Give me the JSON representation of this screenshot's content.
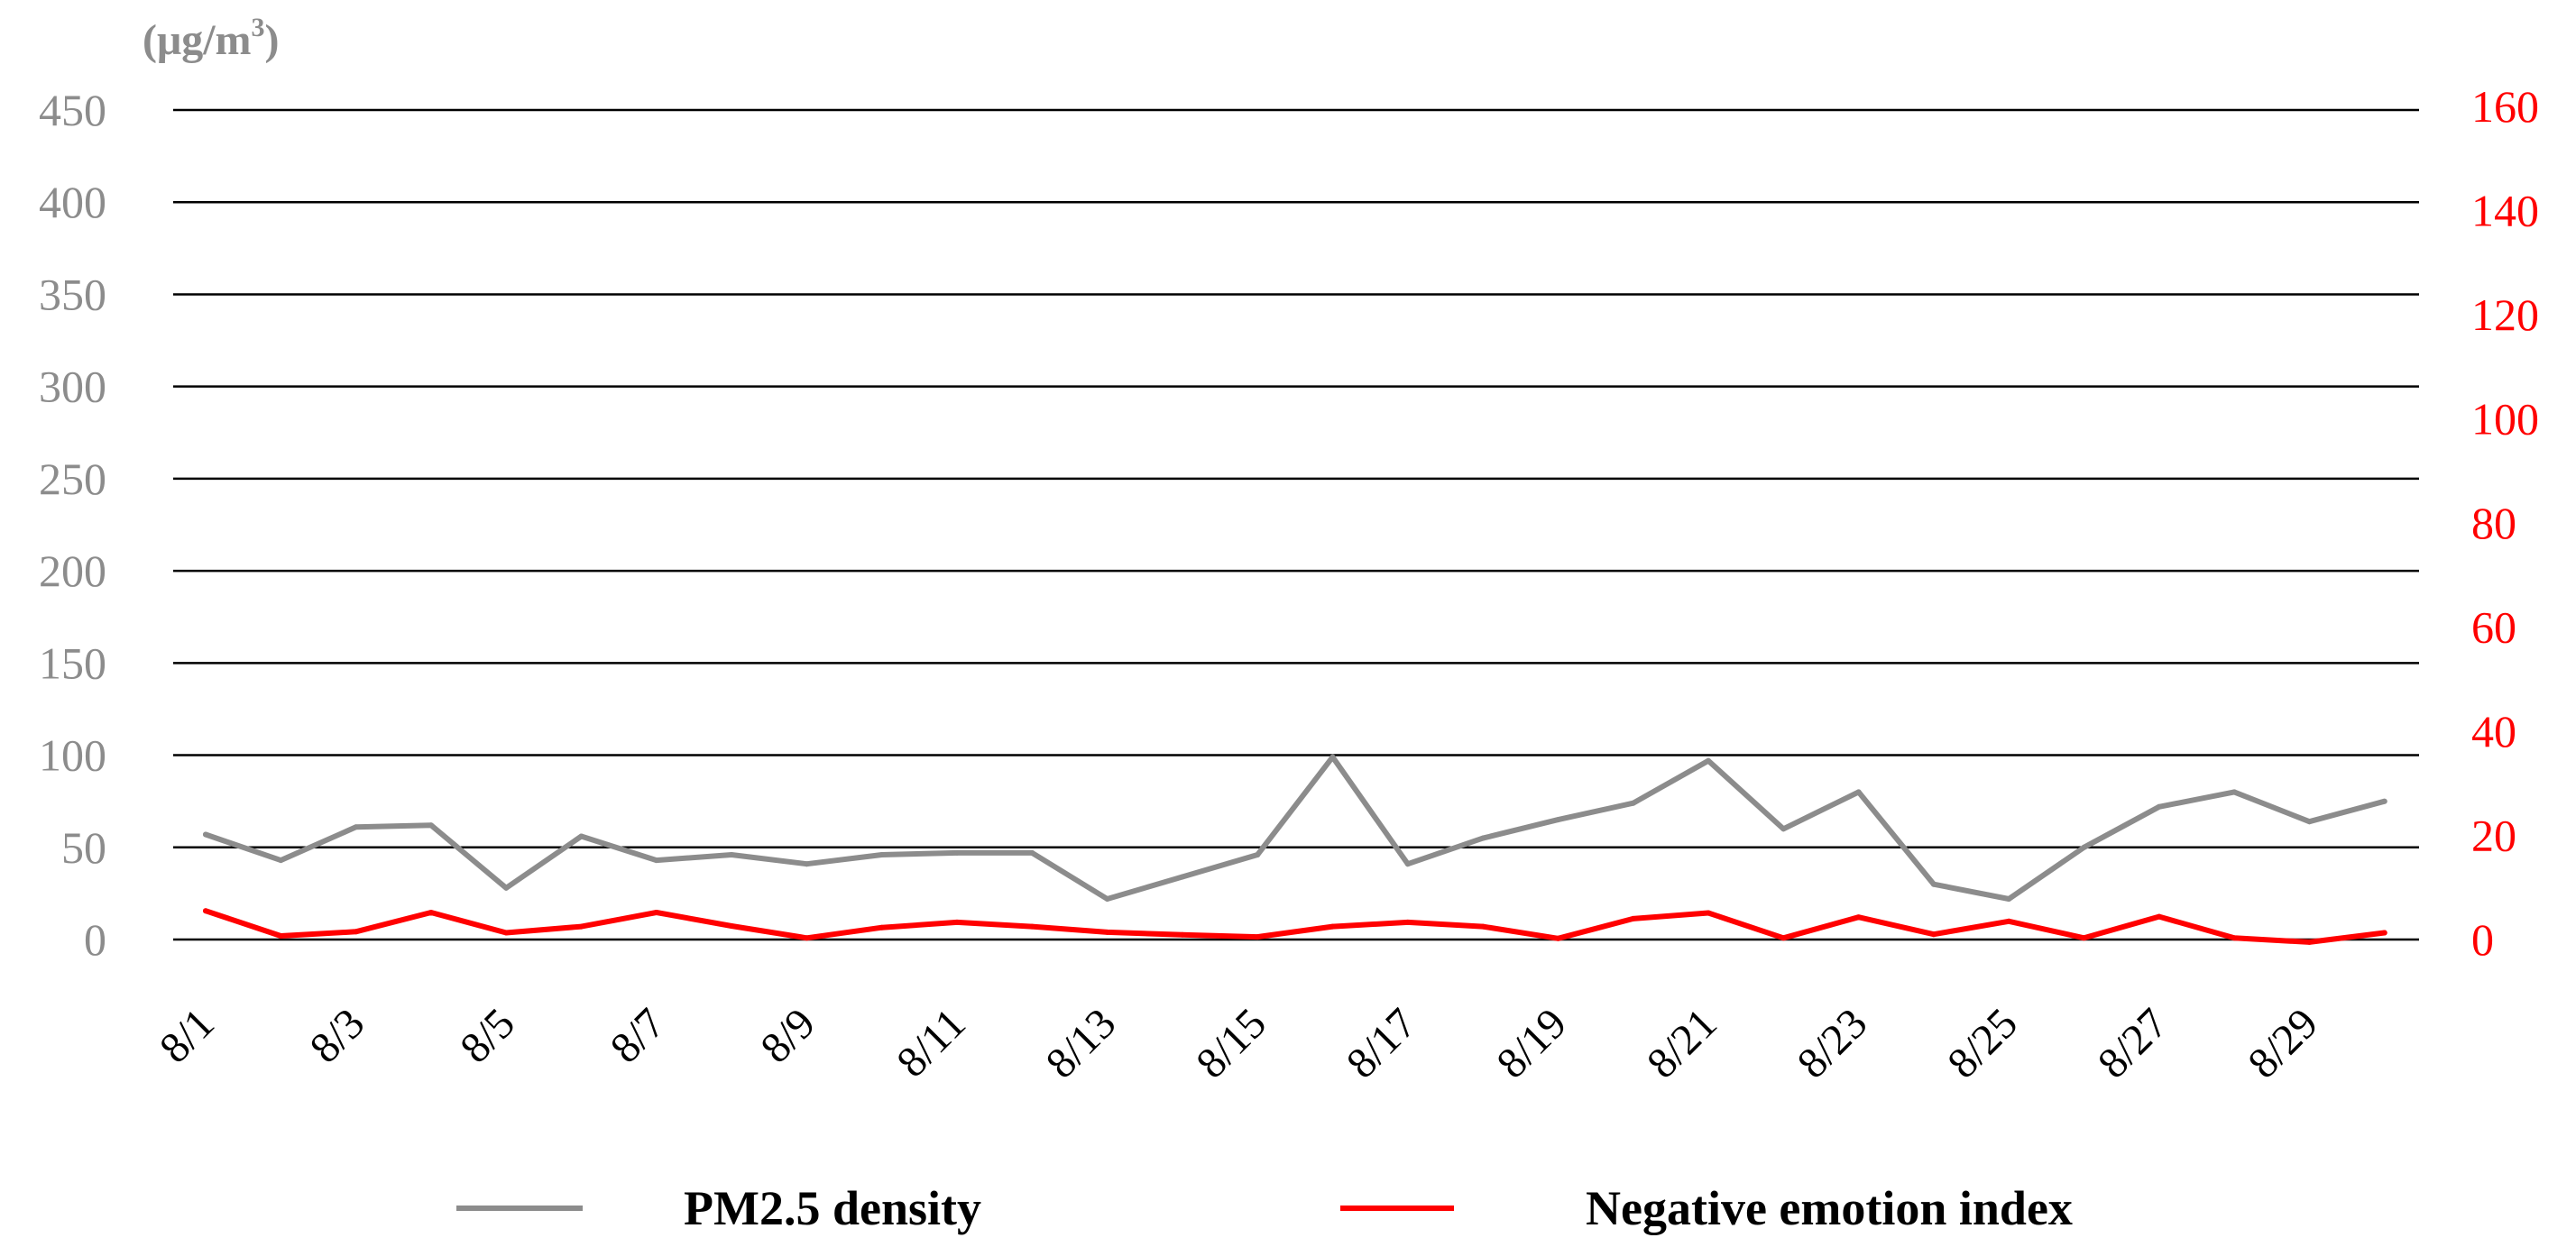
{
  "chart_data": {
    "type": "line",
    "categories": [
      "8/1",
      "8/2",
      "8/3",
      "8/4",
      "8/5",
      "8/6",
      "8/7",
      "8/8",
      "8/9",
      "8/10",
      "8/11",
      "8/12",
      "8/13",
      "8/14",
      "8/15",
      "8/16",
      "8/17",
      "8/18",
      "8/19",
      "8/20",
      "8/21",
      "8/22",
      "8/23",
      "8/24",
      "8/25",
      "8/26",
      "8/27",
      "8/28",
      "8/29",
      "8/30"
    ],
    "x_tick_labels": [
      "8/1",
      "8/3",
      "8/5",
      "8/7",
      "8/9",
      "8/11",
      "8/13",
      "8/15",
      "8/17",
      "8/19",
      "8/21",
      "8/23",
      "8/25",
      "8/27",
      "8/29"
    ],
    "y_left": {
      "unit_main": "(μg/m",
      "unit_sup": "3",
      "unit_end": ")",
      "ylim": [
        0,
        450
      ],
      "ticks": [
        0,
        50,
        100,
        150,
        200,
        250,
        300,
        350,
        400,
        450
      ],
      "tick_labels": [
        "0",
        "50",
        "100",
        "150",
        "200",
        "250",
        "300",
        "350",
        "400",
        "450"
      ],
      "color": "#8c8c8c"
    },
    "y_right": {
      "ylim": [
        0,
        160
      ],
      "ticks": [
        0,
        20,
        40,
        60,
        80,
        100,
        120,
        140,
        160
      ],
      "tick_labels": [
        "0",
        "20",
        "40",
        "60",
        "80",
        "100",
        "120",
        "140",
        "160"
      ],
      "color": "#ff0000"
    },
    "grid": true,
    "legend_position": "bottom",
    "series": [
      {
        "name": "PM2.5 density",
        "axis": "left",
        "color": "#8c8c8c",
        "values": [
          57,
          43,
          61,
          62,
          28,
          56,
          43,
          46,
          41,
          46,
          47,
          47,
          22,
          34,
          46,
          99,
          41,
          55,
          65,
          74,
          97,
          60,
          80,
          30,
          22,
          50,
          72,
          80,
          64,
          75
        ]
      },
      {
        "name": "Negative emotion index",
        "axis": "right",
        "color": "#ff0000",
        "values": [
          5.5,
          0.7,
          1.5,
          5.2,
          1.3,
          2.5,
          5.2,
          2.6,
          0.3,
          2.3,
          3.3,
          2.5,
          1.4,
          0.9,
          0.5,
          2.5,
          3.3,
          2.5,
          0.2,
          4.0,
          5.1,
          0.3,
          4.3,
          1.0,
          3.5,
          0.3,
          4.4,
          0.3,
          -0.5,
          1.3
        ]
      }
    ]
  }
}
